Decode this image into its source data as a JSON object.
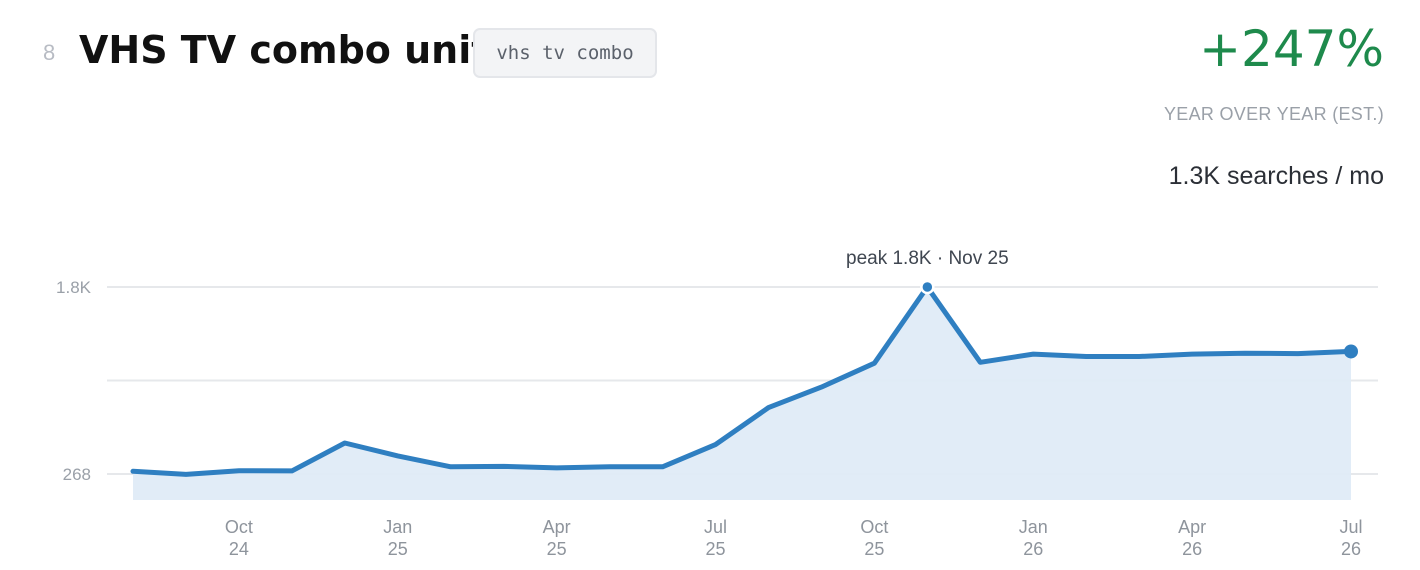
{
  "header": {
    "rank": "8",
    "title": "VHS TV combo units",
    "keyword": "vhs tv combo",
    "growth": "+247%",
    "growth_label": "YEAR OVER YEAR  (EST.)",
    "volume": "1.3K searches / mo"
  },
  "colors": {
    "line": "#2f7fc1",
    "fill": "#dfebf7",
    "growth": "#1e8a4c",
    "grid": "#e6e8eb"
  },
  "chart_data": {
    "type": "area",
    "peak_label": "peak 1.8K · Nov 25",
    "y_tick_labels": [
      "1.8K",
      "268"
    ],
    "y_ticks": [
      1800,
      268
    ],
    "ylim": [
      268,
      1800
    ],
    "x_ticks": [
      {
        "month": "Oct",
        "year": "24",
        "x": "2024-10"
      },
      {
        "month": "Jan",
        "year": "25",
        "x": "2025-01"
      },
      {
        "month": "Apr",
        "year": "25",
        "x": "2025-04"
      },
      {
        "month": "Jul",
        "year": "25",
        "x": "2025-07"
      },
      {
        "month": "Oct",
        "year": "25",
        "x": "2025-10"
      },
      {
        "month": "Jan",
        "year": "26",
        "x": "2026-01"
      },
      {
        "month": "Apr",
        "year": "26",
        "x": "2026-04"
      },
      {
        "month": "Jul",
        "year": "26",
        "x": "2026-07"
      }
    ],
    "series": [
      {
        "x": [
          "2024-08",
          "2024-09",
          "2024-10",
          "2024-11",
          "2024-12",
          "2025-01",
          "2025-02",
          "2025-03",
          "2025-04",
          "2025-05",
          "2025-06",
          "2025-07",
          "2025-08",
          "2025-09",
          "2025-10",
          "2025-11",
          "2025-12",
          "2026-01",
          "2026-02",
          "2026-03",
          "2026-04",
          "2026-05",
          "2026-06",
          "2026-07"
        ],
        "values": [
          290,
          265,
          295,
          293,
          522,
          416,
          327,
          330,
          318,
          327,
          327,
          509,
          812,
          980,
          1176,
          1800,
          1183,
          1250,
          1231,
          1231,
          1250,
          1258,
          1254,
          1272
        ]
      }
    ],
    "grid": true
  }
}
